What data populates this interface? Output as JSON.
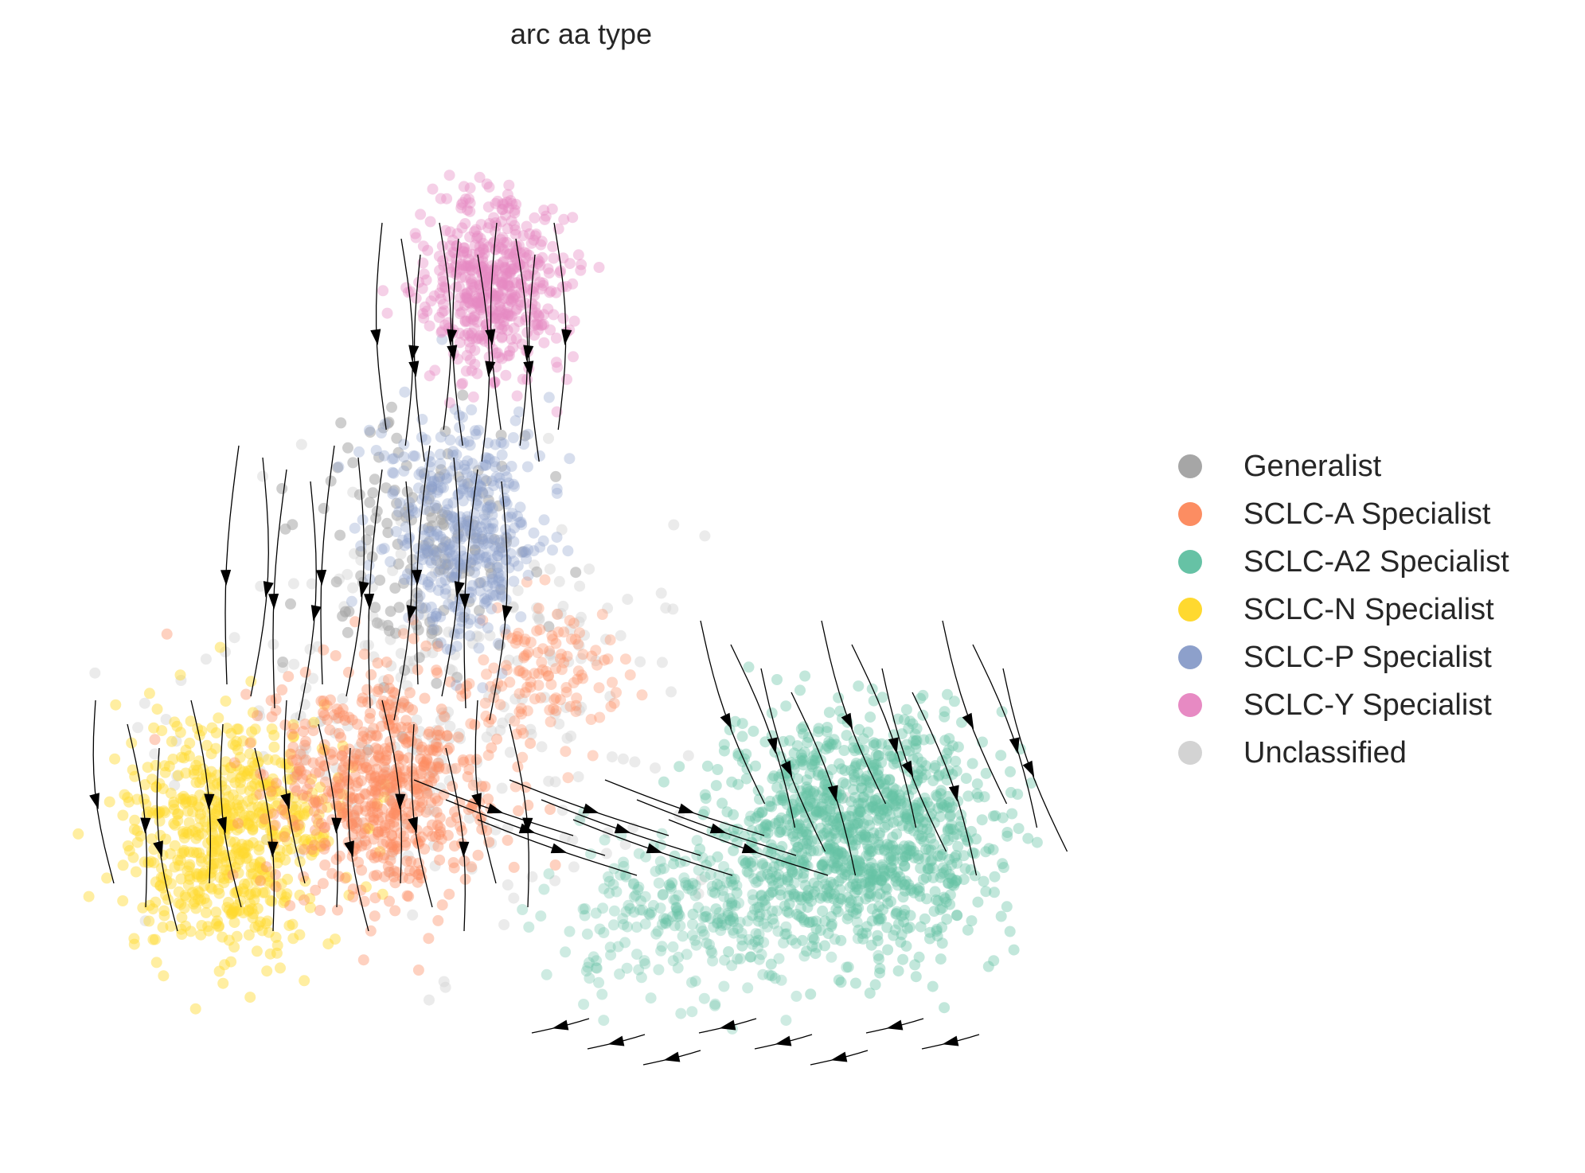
{
  "chart_data": {
    "type": "scatter",
    "title": "arc aa type",
    "xlabel": "",
    "ylabel": "",
    "axes_visible": false,
    "grid": false,
    "legend_position": "right",
    "overlay": "velocity-streamlines",
    "series": [
      {
        "name": "Generalist",
        "color": "#a6a6a6"
      },
      {
        "name": "SCLC-A Specialist",
        "color": "#fc8d62"
      },
      {
        "name": "SCLC-A2 Specialist",
        "color": "#66c2a5"
      },
      {
        "name": "SCLC-N Specialist",
        "color": "#ffd92f"
      },
      {
        "name": "SCLC-P Specialist",
        "color": "#8da0cb"
      },
      {
        "name": "SCLC-Y Specialist",
        "color": "#e78ac3"
      },
      {
        "name": "Unclassified",
        "color": "#d3d3d3"
      }
    ]
  }
}
